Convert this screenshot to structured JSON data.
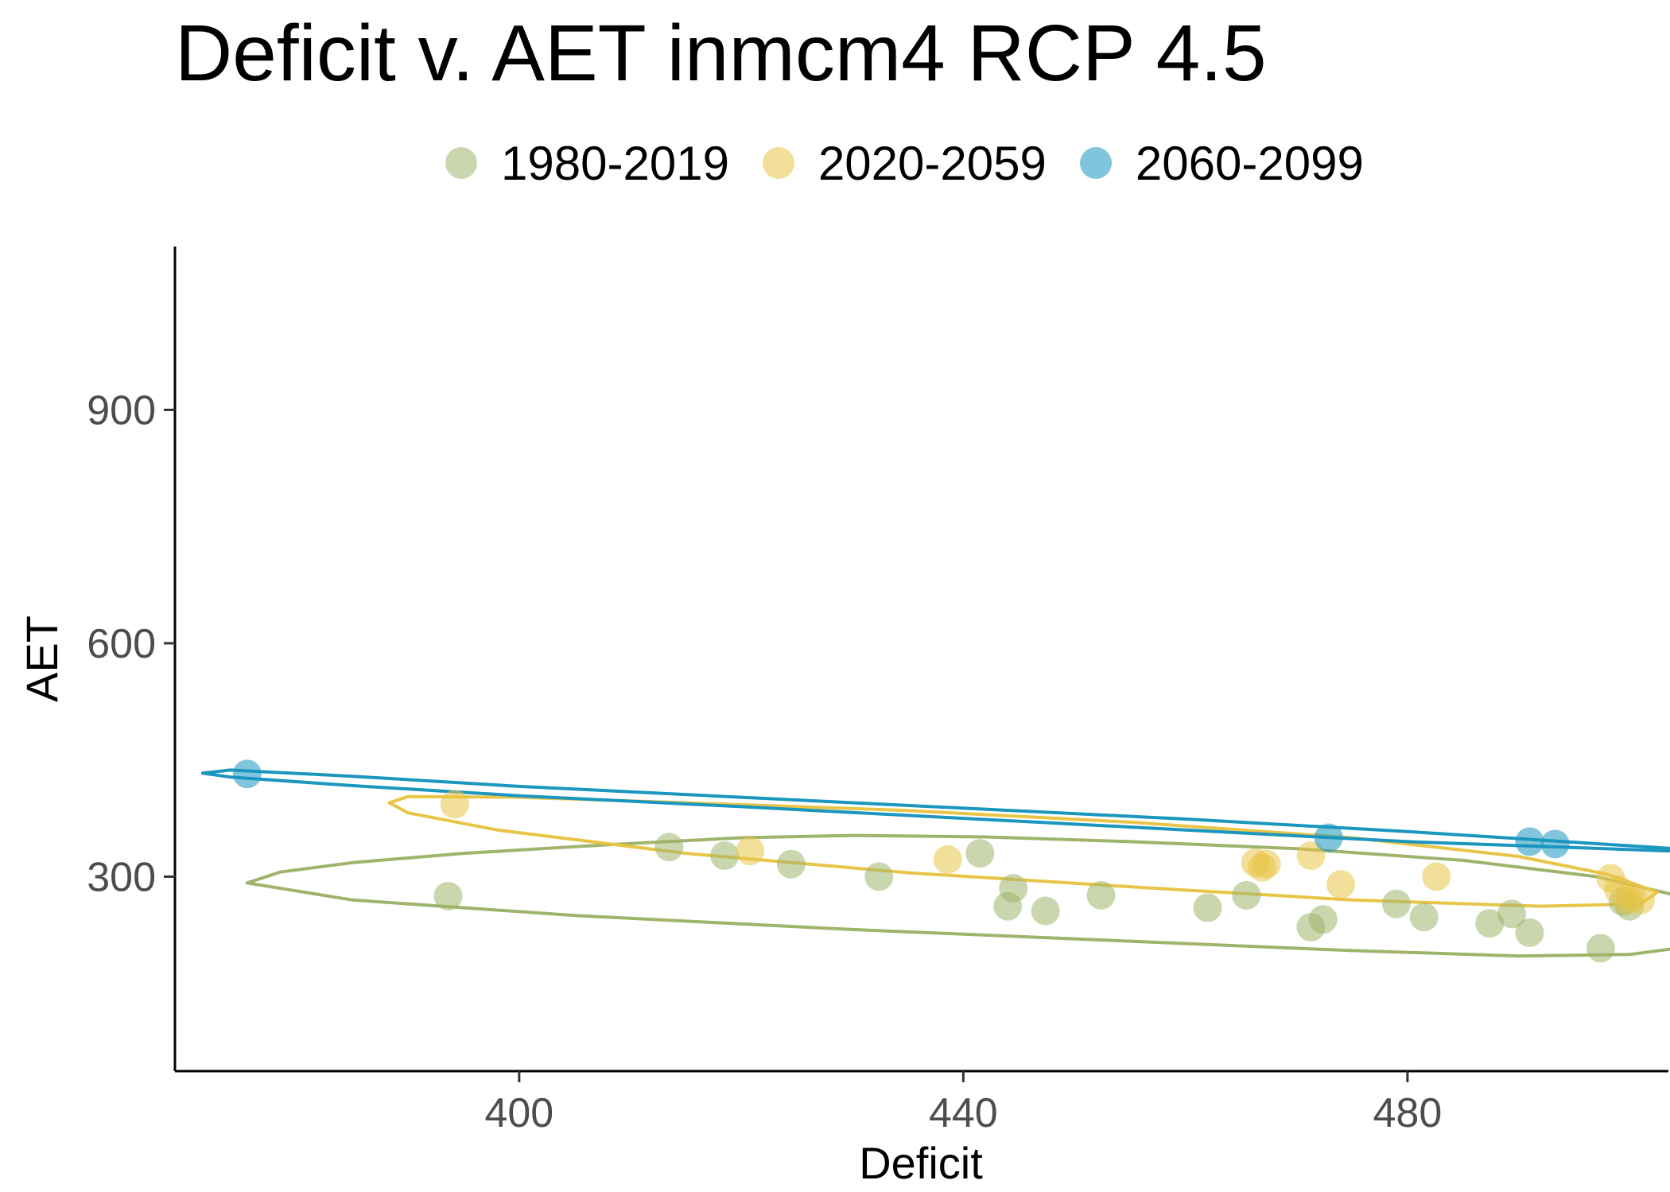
{
  "chart_data": {
    "type": "scatter",
    "title": "Deficit v. AET inmcm4 RCP 4.5",
    "xlabel": "Deficit",
    "ylabel": "AET",
    "xlim": [
      369,
      503.5
    ],
    "ylim": [
      50,
      1110
    ],
    "x_ticks": [
      400,
      440,
      480
    ],
    "x_tick_labels": [
      "400",
      "440",
      "480"
    ],
    "y_ticks": [
      300,
      600,
      900
    ],
    "y_tick_labels": [
      "300",
      "600",
      "900"
    ],
    "grid": false,
    "legend_position": "top",
    "series": [
      {
        "name": "1980-2019",
        "color": "#9fb46b",
        "points": [
          [
            393.6,
            275
          ],
          [
            413.5,
            338
          ],
          [
            418.5,
            327
          ],
          [
            424.5,
            316
          ],
          [
            432.4,
            300
          ],
          [
            441.5,
            330
          ],
          [
            444,
            262
          ],
          [
            444.5,
            285
          ],
          [
            447.4,
            256
          ],
          [
            452.4,
            276
          ],
          [
            462,
            260
          ],
          [
            465.5,
            276
          ],
          [
            471.3,
            235
          ],
          [
            472.4,
            245
          ],
          [
            479,
            265
          ],
          [
            481.5,
            248
          ],
          [
            487.4,
            240
          ],
          [
            489.4,
            252
          ],
          [
            491,
            228
          ],
          [
            497.4,
            208
          ],
          [
            499.4,
            268
          ],
          [
            500,
            262
          ]
        ],
        "ellipse": [
          [
            375.5,
            292
          ],
          [
            378.5,
            306
          ],
          [
            385,
            318
          ],
          [
            395,
            330
          ],
          [
            408,
            341
          ],
          [
            420,
            350
          ],
          [
            430,
            353
          ],
          [
            442,
            351
          ],
          [
            455,
            345
          ],
          [
            470,
            336
          ],
          [
            485,
            321
          ],
          [
            497,
            300
          ],
          [
            506,
            270
          ],
          [
            510,
            240
          ],
          [
            507,
            213
          ],
          [
            500,
            200
          ],
          [
            490,
            198
          ],
          [
            475,
            205
          ],
          [
            455,
            217
          ],
          [
            430,
            232
          ],
          [
            405,
            250
          ],
          [
            385,
            270
          ],
          [
            375.5,
            292
          ]
        ]
      },
      {
        "name": "2020-2059",
        "color": "#e8c547",
        "points": [
          [
            394.2,
            393
          ],
          [
            420.8,
            333
          ],
          [
            438.6,
            322
          ],
          [
            466.3,
            318
          ],
          [
            466.9,
            312
          ],
          [
            467.3,
            316
          ],
          [
            471.3,
            327
          ],
          [
            474,
            290
          ],
          [
            482.6,
            300
          ],
          [
            498.3,
            298
          ],
          [
            499,
            283
          ],
          [
            499.8,
            270
          ],
          [
            500.2,
            275
          ],
          [
            501,
            270
          ]
        ],
        "ellipse": [
          [
            388.3,
            395
          ],
          [
            390,
            403
          ],
          [
            400,
            402
          ],
          [
            415,
            395
          ],
          [
            435,
            385
          ],
          [
            455,
            370
          ],
          [
            475,
            350
          ],
          [
            490,
            326
          ],
          [
            498,
            303
          ],
          [
            502.5,
            280
          ],
          [
            501,
            265
          ],
          [
            492,
            262
          ],
          [
            475,
            270
          ],
          [
            455,
            287
          ],
          [
            435,
            305
          ],
          [
            415,
            330
          ],
          [
            398,
            360
          ],
          [
            390,
            382
          ],
          [
            388.3,
            395
          ]
        ]
      },
      {
        "name": "2060-2099",
        "color": "#1a96bf",
        "points": [
          [
            375.5,
            432
          ],
          [
            472.9,
            350
          ],
          [
            491,
            345
          ],
          [
            493.3,
            342
          ]
        ],
        "ellipse": [
          [
            371.5,
            433
          ],
          [
            374,
            437
          ],
          [
            385,
            429
          ],
          [
            400,
            416
          ],
          [
            420,
            402
          ],
          [
            440,
            388
          ],
          [
            460,
            374
          ],
          [
            480,
            358
          ],
          [
            504,
            336
          ],
          [
            503.5,
            333
          ],
          [
            480,
            345
          ],
          [
            460,
            360
          ],
          [
            440,
            375
          ],
          [
            420,
            390
          ],
          [
            400,
            404
          ],
          [
            385,
            417
          ],
          [
            374,
            428
          ],
          [
            371.5,
            433
          ]
        ]
      }
    ]
  }
}
